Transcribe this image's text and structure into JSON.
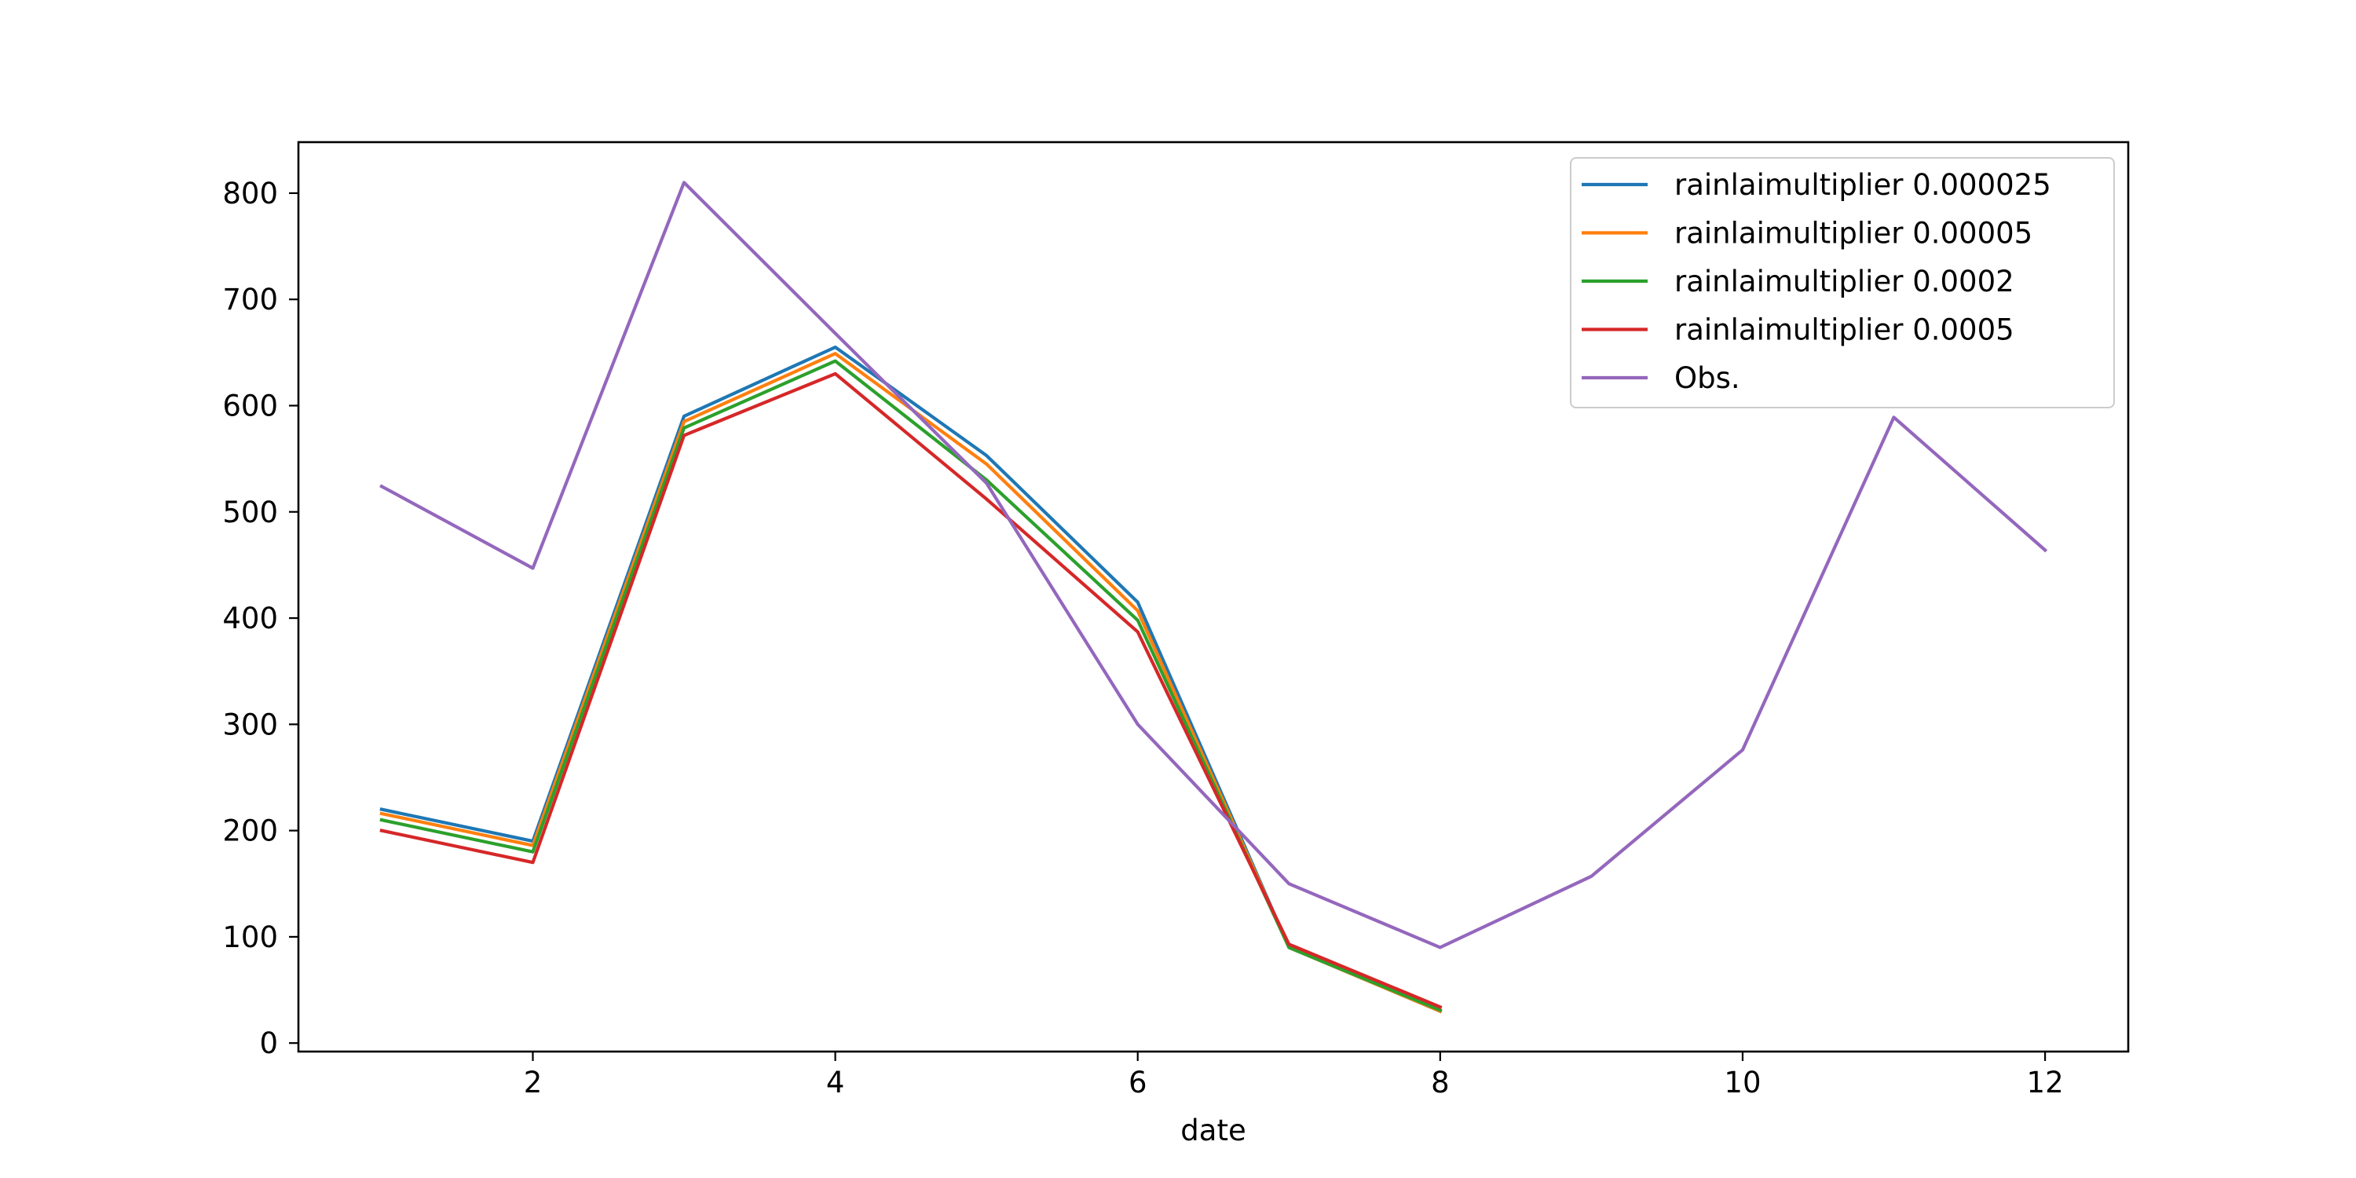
{
  "chart_data": {
    "type": "line",
    "xlabel": "date",
    "ylabel": "",
    "title": "",
    "xlim": [
      0.45,
      12.55
    ],
    "ylim": [
      -8,
      848
    ],
    "xticks": [
      2,
      4,
      6,
      8,
      10,
      12
    ],
    "xtick_labels": [
      "2",
      "4",
      "6",
      "8",
      "10",
      "12"
    ],
    "yticks": [
      0,
      100,
      200,
      300,
      400,
      500,
      600,
      700,
      800
    ],
    "ytick_labels": [
      "0",
      "100",
      "200",
      "300",
      "400",
      "500",
      "600",
      "700",
      "800"
    ],
    "grid": false,
    "legend_position": "top-right",
    "series": [
      {
        "name": "rainlaimultiplier 0.000025",
        "color": "#1f77b4",
        "x": [
          1,
          2,
          3,
          4,
          5,
          6,
          7,
          8
        ],
        "y": [
          220,
          190,
          590,
          655,
          553,
          415,
          90,
          30
        ]
      },
      {
        "name": "rainlaimultiplier 0.00005",
        "color": "#ff7f0e",
        "x": [
          1,
          2,
          3,
          4,
          5,
          6,
          7,
          8
        ],
        "y": [
          216,
          186,
          585,
          649,
          545,
          407,
          90,
          30
        ]
      },
      {
        "name": "rainlaimultiplier 0.0002",
        "color": "#2ca02c",
        "x": [
          1,
          2,
          3,
          4,
          5,
          6,
          7,
          8
        ],
        "y": [
          210,
          180,
          579,
          642,
          530,
          398,
          90,
          31
        ]
      },
      {
        "name": "rainlaimultiplier 0.0005",
        "color": "#d62728",
        "x": [
          1,
          2,
          3,
          4,
          5,
          6,
          7,
          8
        ],
        "y": [
          200,
          170,
          572,
          630,
          512,
          387,
          93,
          34
        ]
      },
      {
        "name": "Obs.",
        "color": "#9467bd",
        "x": [
          1,
          2,
          3,
          4,
          5,
          6,
          7,
          8,
          9,
          10,
          11,
          12
        ],
        "y": [
          524,
          447,
          810,
          668,
          527,
          300,
          150,
          90,
          157,
          276,
          589,
          464
        ]
      }
    ]
  }
}
